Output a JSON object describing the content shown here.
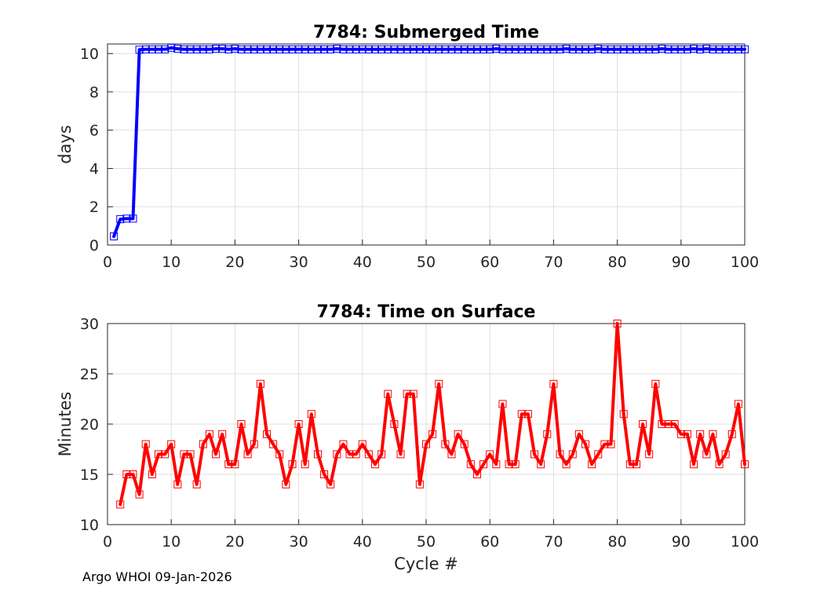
{
  "footer": "Argo WHOI 09-Jan-2026",
  "chart_data": [
    {
      "type": "line",
      "title": "7784: Submerged Time",
      "xlabel": "",
      "ylabel": "days",
      "xlim": [
        0,
        100
      ],
      "ylim": [
        0,
        10.5
      ],
      "xticks": [
        0,
        10,
        20,
        30,
        40,
        50,
        60,
        70,
        80,
        90,
        100
      ],
      "yticks": [
        0,
        2,
        4,
        6,
        8,
        10
      ],
      "grid": true,
      "color": "#0000ff",
      "marker": "square",
      "x": [
        1,
        2,
        3,
        4,
        5,
        6,
        7,
        8,
        9,
        10,
        11,
        12,
        13,
        14,
        15,
        16,
        17,
        18,
        19,
        20,
        21,
        22,
        23,
        24,
        25,
        26,
        27,
        28,
        29,
        30,
        31,
        32,
        33,
        34,
        35,
        36,
        37,
        38,
        39,
        40,
        41,
        42,
        43,
        44,
        45,
        46,
        47,
        48,
        49,
        50,
        51,
        52,
        53,
        54,
        55,
        56,
        57,
        58,
        59,
        60,
        61,
        62,
        63,
        64,
        65,
        66,
        67,
        68,
        69,
        70,
        71,
        72,
        73,
        74,
        75,
        76,
        77,
        78,
        79,
        80,
        81,
        82,
        83,
        84,
        85,
        86,
        87,
        88,
        89,
        90,
        91,
        92,
        93,
        94,
        95,
        96,
        97,
        98,
        99,
        100
      ],
      "y": [
        0.45,
        1.35,
        1.38,
        1.38,
        10.2,
        10.22,
        10.22,
        10.22,
        10.22,
        10.3,
        10.25,
        10.22,
        10.22,
        10.22,
        10.22,
        10.22,
        10.25,
        10.25,
        10.22,
        10.25,
        10.22,
        10.22,
        10.22,
        10.22,
        10.22,
        10.22,
        10.22,
        10.22,
        10.22,
        10.22,
        10.22,
        10.22,
        10.22,
        10.22,
        10.22,
        10.25,
        10.22,
        10.22,
        10.22,
        10.22,
        10.22,
        10.22,
        10.22,
        10.22,
        10.22,
        10.22,
        10.22,
        10.22,
        10.22,
        10.22,
        10.22,
        10.22,
        10.22,
        10.22,
        10.22,
        10.22,
        10.22,
        10.22,
        10.22,
        10.22,
        10.25,
        10.22,
        10.22,
        10.22,
        10.22,
        10.22,
        10.22,
        10.22,
        10.22,
        10.22,
        10.22,
        10.25,
        10.22,
        10.22,
        10.22,
        10.22,
        10.25,
        10.22,
        10.22,
        10.22,
        10.22,
        10.22,
        10.22,
        10.22,
        10.22,
        10.22,
        10.25,
        10.22,
        10.22,
        10.22,
        10.22,
        10.25,
        10.22,
        10.25,
        10.22,
        10.22,
        10.22,
        10.22,
        10.22,
        10.22
      ]
    },
    {
      "type": "line",
      "title": "7784: Time on Surface",
      "xlabel": "Cycle #",
      "ylabel": "Minutes",
      "xlim": [
        0,
        100
      ],
      "ylim": [
        10,
        30
      ],
      "xticks": [
        0,
        10,
        20,
        30,
        40,
        50,
        60,
        70,
        80,
        90,
        100
      ],
      "yticks": [
        10,
        15,
        20,
        25,
        30
      ],
      "grid": true,
      "color": "#ff0000",
      "marker": "square",
      "x": [
        2,
        3,
        4,
        5,
        6,
        7,
        8,
        9,
        10,
        11,
        12,
        13,
        14,
        15,
        16,
        17,
        18,
        19,
        20,
        21,
        22,
        23,
        24,
        25,
        26,
        27,
        28,
        29,
        30,
        31,
        32,
        33,
        34,
        35,
        36,
        37,
        38,
        39,
        40,
        41,
        42,
        43,
        44,
        45,
        46,
        47,
        48,
        49,
        50,
        51,
        52,
        53,
        54,
        55,
        56,
        57,
        58,
        59,
        60,
        61,
        62,
        63,
        64,
        65,
        66,
        67,
        68,
        69,
        70,
        71,
        72,
        73,
        74,
        75,
        76,
        77,
        78,
        79,
        80,
        81,
        82,
        83,
        84,
        85,
        86,
        87,
        88,
        89,
        90,
        91,
        92,
        93,
        94,
        95,
        96,
        97,
        98,
        99,
        100
      ],
      "y": [
        12,
        15,
        15,
        13,
        18,
        15,
        17,
        17,
        18,
        14,
        17,
        17,
        14,
        18,
        19,
        17,
        19,
        16,
        16,
        20,
        17,
        18,
        24,
        19,
        18,
        17,
        14,
        16,
        20,
        16,
        21,
        17,
        15,
        14,
        17,
        18,
        17,
        17,
        18,
        17,
        16,
        17,
        23,
        20,
        17,
        23,
        23,
        14,
        18,
        19,
        24,
        18,
        17,
        19,
        18,
        16,
        15,
        16,
        17,
        16,
        22,
        16,
        16,
        21,
        21,
        17,
        16,
        19,
        24,
        17,
        16,
        17,
        19,
        18,
        16,
        17,
        18,
        18,
        30,
        21,
        16,
        16,
        20,
        17,
        24,
        20,
        20,
        20,
        19,
        19,
        16,
        19,
        17,
        19,
        16,
        17,
        19,
        22,
        16
      ]
    }
  ]
}
